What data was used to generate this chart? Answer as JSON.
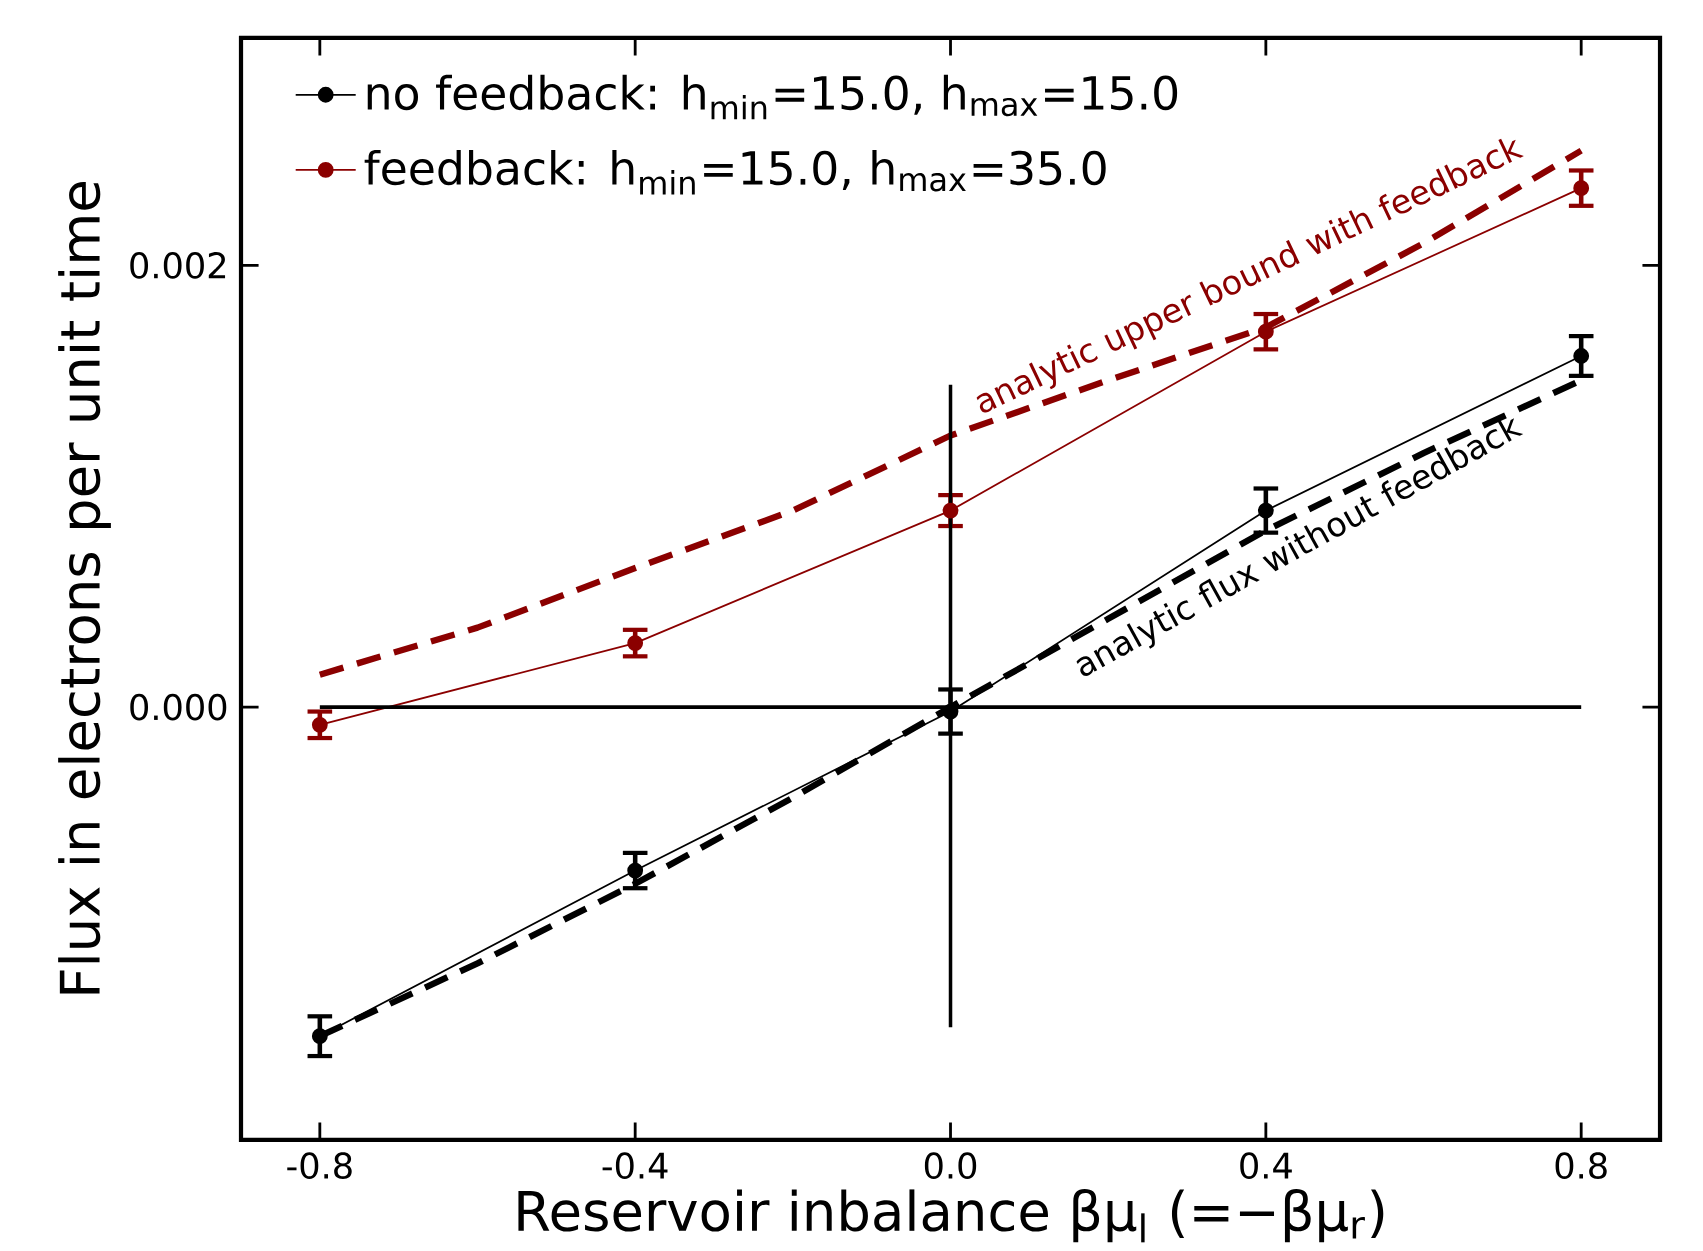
{
  "chart_data": {
    "type": "line",
    "xlabel": "Reservoir inbalance βμ$_{l}$  (=−βμ$_{r}$)",
    "ylabel": "Flux in electrons per unit time",
    "x": [
      -0.8,
      -0.4,
      0.0,
      0.4,
      0.8
    ],
    "xlim": [
      -0.9,
      0.9
    ],
    "ylim": [
      -0.00196,
      0.00303
    ],
    "xticks": [
      -0.8,
      -0.4,
      {
        "value": 0.0,
        "label": "0.0"
      },
      0.4,
      0.8
    ],
    "yticks": [
      {
        "value": 0.0,
        "label": "0.000"
      },
      0.002
    ],
    "legend": "top left",
    "grid": false,
    "series": [
      {
        "name": "no feedback: h$_{min}$=15.0, h$_{max}$=15.0",
        "color": "#000000",
        "marker": "circle",
        "line_style": "solid",
        "values": [
          -0.00149,
          -0.00074,
          -2e-05,
          0.00089,
          0.00159
        ],
        "errors": [
          9e-05,
          8e-05,
          0.0001,
          0.0001,
          9e-05
        ]
      },
      {
        "name": "feedback: h$_{min}$=15.0, h$_{max}$=35.0",
        "color": "#8b0000",
        "marker": "circle",
        "line_style": "solid",
        "values": [
          -8e-05,
          0.00029,
          0.00089,
          0.0017,
          0.00235
        ],
        "errors": [
          6e-05,
          6e-05,
          7e-05,
          8e-05,
          8e-05
        ]
      },
      {
        "color": "#8b0000",
        "marker": "none",
        "line_style": "dashed",
        "x": [
          -0.8,
          -0.6,
          -0.4,
          -0.2,
          0.0,
          0.2,
          0.4,
          0.6,
          0.8
        ],
        "values": [
          0.000147,
          0.00036,
          0.00063,
          0.00089,
          0.00123,
          0.00148,
          0.00172,
          0.0021,
          0.00252
        ]
      },
      {
        "color": "#000000",
        "marker": "none",
        "line_style": "dashed",
        "x": [
          -0.8,
          -0.6,
          -0.4,
          -0.2,
          0.0,
          0.2,
          0.4,
          0.6,
          0.8
        ],
        "values": [
          -0.00149,
          -0.00116,
          -0.0008,
          -0.00041,
          0.0,
          0.0004,
          0.0008,
          0.00115,
          0.00148
        ]
      },
      {
        "color": "#000000",
        "marker": "none",
        "line_style": "solid",
        "x": [
          -0.8,
          0.8
        ],
        "values": [
          0.0,
          0.0
        ]
      },
      {
        "color": "#000000",
        "marker": "none",
        "line_style": "solid",
        "x": [
          0.0,
          0.0
        ],
        "values": [
          -0.00145,
          0.00146
        ]
      }
    ],
    "annotations": [
      "analytic upper bound with feedback",
      "analytic flux without feedback"
    ]
  }
}
